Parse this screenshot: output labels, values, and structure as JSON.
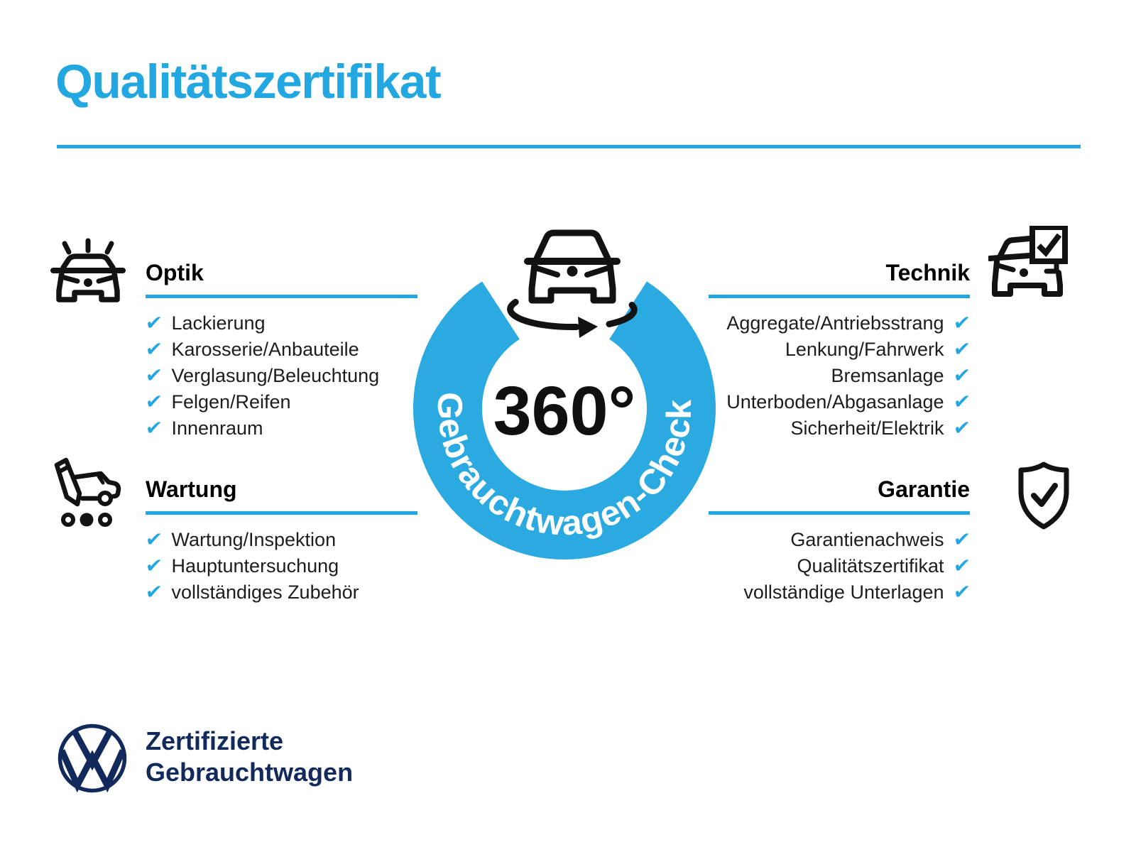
{
  "title": "Qualitätszertifikat",
  "center": {
    "value": "360°",
    "ring_label": "Gebrauchtwagen-Check",
    "icon": "car-rotate-icon"
  },
  "sections": [
    {
      "title": "Optik",
      "icon": "car-shine-icon",
      "items": [
        "Lackierung",
        "Karosserie/Anbauteile",
        "Verglasung/Beleuchtung",
        "Felgen/Reifen",
        "Innenraum"
      ]
    },
    {
      "title": "Wartung",
      "icon": "pencil-car-icon",
      "items": [
        "Wartung/Inspektion",
        "Hauptuntersuchung",
        "vollständiges Zubehör"
      ]
    },
    {
      "title": "Technik",
      "icon": "car-checklist-icon",
      "items": [
        "Aggregate/Antriebsstrang",
        "Lenkung/Fahrwerk",
        "Bremsanlage",
        "Unterboden/Abgasanlage",
        "Sicherheit/Elektrik"
      ]
    },
    {
      "title": "Garantie",
      "icon": "shield-check-icon",
      "items": [
        "Garantienachweis",
        "Qualitätszertifikat",
        "vollständige Unterlagen"
      ]
    }
  ],
  "footer": {
    "logo": "vw-logo",
    "line1": "Zertifizierte",
    "line2": "Gebrauchtwagen"
  },
  "check_glyph": "✔",
  "colors": {
    "accent": "#23a7e0",
    "ring": "#2ba9e1",
    "navy": "#12295c",
    "text": "#1d1d1b"
  }
}
